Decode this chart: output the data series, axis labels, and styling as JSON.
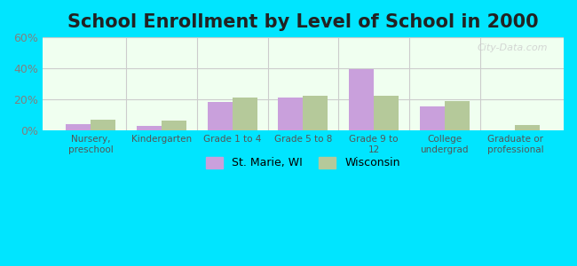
{
  "title": "School Enrollment by Level of School in 2000",
  "categories": [
    "Nursery,\npreschool",
    "Kindergarten",
    "Grade 1 to 4",
    "Grade 5 to 8",
    "Grade 9 to\n12",
    "College\nundergrad",
    "Graduate or\nprofessional"
  ],
  "st_marie": [
    4.0,
    3.0,
    18.5,
    21.0,
    39.5,
    15.5,
    0.0
  ],
  "wisconsin": [
    7.0,
    6.5,
    21.0,
    22.5,
    22.5,
    19.0,
    3.5
  ],
  "st_marie_color": "#c9a0dc",
  "wisconsin_color": "#b5c99a",
  "background_outer": "#00e5ff",
  "background_inner_top": "#f0fff0",
  "background_inner_bottom": "#e8f5d0",
  "ylim": [
    0,
    60
  ],
  "yticks": [
    0,
    20,
    40,
    60
  ],
  "ytick_labels": [
    "0%",
    "20%",
    "40%",
    "60%"
  ],
  "title_fontsize": 15,
  "legend_labels": [
    "St. Marie, WI",
    "Wisconsin"
  ],
  "bar_width": 0.35,
  "ylabel_color": "#808080",
  "grid_color": "#cccccc",
  "watermark": "City-Data.com"
}
